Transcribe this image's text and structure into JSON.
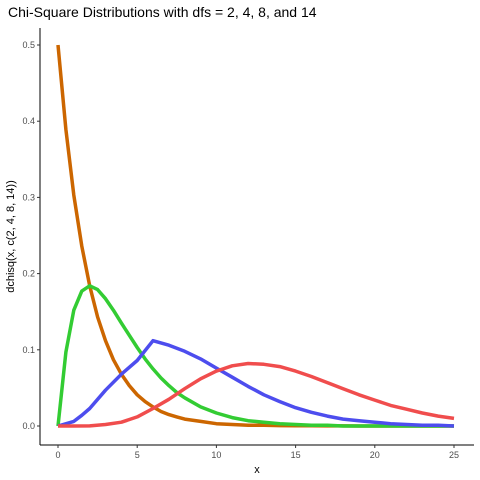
{
  "chart_data": {
    "type": "line",
    "title": "Chi-Square Distributions with dfs = 2, 4, 8, and 14",
    "xlabel": "x",
    "ylabel": "dchisq(x, c(2, 4, 8, 14))",
    "xlim": [
      0,
      25
    ],
    "ylim": [
      0,
      0.5
    ],
    "grid": false,
    "legend": "none",
    "x_ticks": [
      0,
      5,
      10,
      15,
      20,
      25
    ],
    "y_ticks": [
      0.0,
      0.1,
      0.2,
      0.3,
      0.4,
      0.5
    ],
    "x_tick_labels": [
      "0",
      "5",
      "10",
      "15",
      "20",
      "25"
    ],
    "y_tick_labels": [
      "0.0",
      "0.1",
      "0.2",
      "0.3",
      "0.4",
      "0.5"
    ],
    "series": [
      {
        "color": "#cc6600",
        "x": [
          0,
          0.5,
          1,
          1.5,
          2,
          2.5,
          3,
          3.5,
          4,
          4.5,
          5,
          5.5,
          6,
          6.5,
          7,
          7.5,
          8,
          9,
          10,
          11,
          12,
          13,
          14,
          15,
          16,
          17,
          18,
          19,
          20,
          21,
          22,
          23,
          24,
          25
        ],
        "values": [
          0.5,
          0.389,
          0.303,
          0.236,
          0.184,
          0.143,
          0.112,
          0.087,
          0.068,
          0.053,
          0.041,
          0.032,
          0.025,
          0.019,
          0.015,
          0.012,
          0.009,
          0.006,
          0.003,
          0.002,
          0.001,
          0.001,
          0.0005,
          0.0003,
          0.0002,
          0.0001,
          0.0001,
          0.0,
          0.0,
          0.0,
          0.0,
          0.0,
          0.0,
          0.0
        ]
      },
      {
        "color": "#33cc33",
        "x": [
          0,
          0.5,
          1,
          1.5,
          2,
          2.5,
          3,
          3.5,
          4,
          4.5,
          5,
          5.5,
          6,
          6.5,
          7,
          7.5,
          8,
          9,
          10,
          11,
          12,
          13,
          14,
          15,
          16,
          17,
          18,
          19,
          20,
          21,
          22,
          23,
          24,
          25
        ],
        "values": [
          0.0,
          0.097,
          0.152,
          0.177,
          0.184,
          0.179,
          0.167,
          0.152,
          0.135,
          0.119,
          0.103,
          0.088,
          0.075,
          0.063,
          0.053,
          0.044,
          0.037,
          0.025,
          0.017,
          0.011,
          0.007,
          0.005,
          0.003,
          0.002,
          0.001,
          0.001,
          0.0,
          0.0,
          0.0,
          0.0,
          0.0,
          0.0,
          0.0,
          0.0
        ]
      },
      {
        "color": "#4d4dee",
        "x": [
          0,
          1,
          1.5,
          2,
          3,
          4,
          5,
          6,
          7,
          8,
          9,
          10,
          11,
          12,
          13,
          14,
          15,
          16,
          17,
          18,
          19,
          20,
          21,
          22,
          23,
          24,
          25
        ],
        "values": [
          0.0,
          0.006,
          0.014,
          0.023,
          0.047,
          0.068,
          0.086,
          0.112,
          0.106,
          0.098,
          0.088,
          0.076,
          0.064,
          0.052,
          0.041,
          0.032,
          0.024,
          0.018,
          0.013,
          0.009,
          0.007,
          0.005,
          0.003,
          0.002,
          0.001,
          0.001,
          0.0
        ]
      },
      {
        "color": "#f04d4d",
        "x": [
          0,
          1,
          2,
          3,
          4,
          5,
          6,
          7,
          8,
          9,
          10,
          11,
          12,
          13,
          14,
          15,
          16,
          17,
          18,
          19,
          20,
          21,
          22,
          23,
          24,
          25
        ],
        "values": [
          0.0,
          0.0,
          0.0001,
          0.002,
          0.005,
          0.012,
          0.023,
          0.035,
          0.049,
          0.062,
          0.072,
          0.079,
          0.082,
          0.081,
          0.078,
          0.072,
          0.065,
          0.057,
          0.049,
          0.041,
          0.034,
          0.027,
          0.022,
          0.017,
          0.013,
          0.01
        ]
      }
    ]
  }
}
